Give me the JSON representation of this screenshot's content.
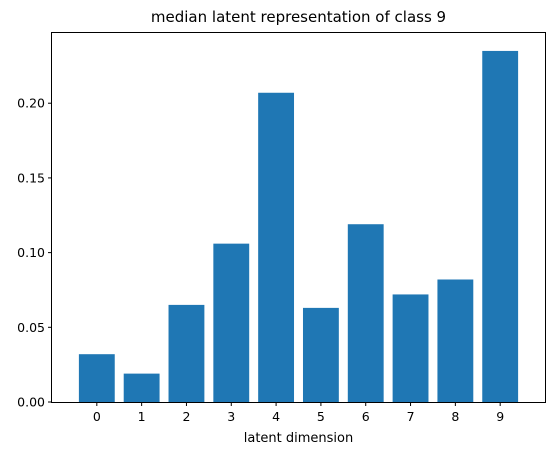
{
  "chart_data": {
    "type": "bar",
    "title": "median latent representation of class 9",
    "xlabel": "latent dimension",
    "ylabel": "",
    "categories": [
      "0",
      "1",
      "2",
      "3",
      "4",
      "5",
      "6",
      "7",
      "8",
      "9"
    ],
    "values": [
      0.032,
      0.019,
      0.065,
      0.106,
      0.207,
      0.063,
      0.119,
      0.072,
      0.082,
      0.235
    ],
    "yticks": [
      "0.00",
      "0.05",
      "0.10",
      "0.15",
      "0.20"
    ],
    "ylim": [
      0,
      0.247
    ],
    "grid": false,
    "legend": "none",
    "bar_color": "#1f77b4"
  }
}
